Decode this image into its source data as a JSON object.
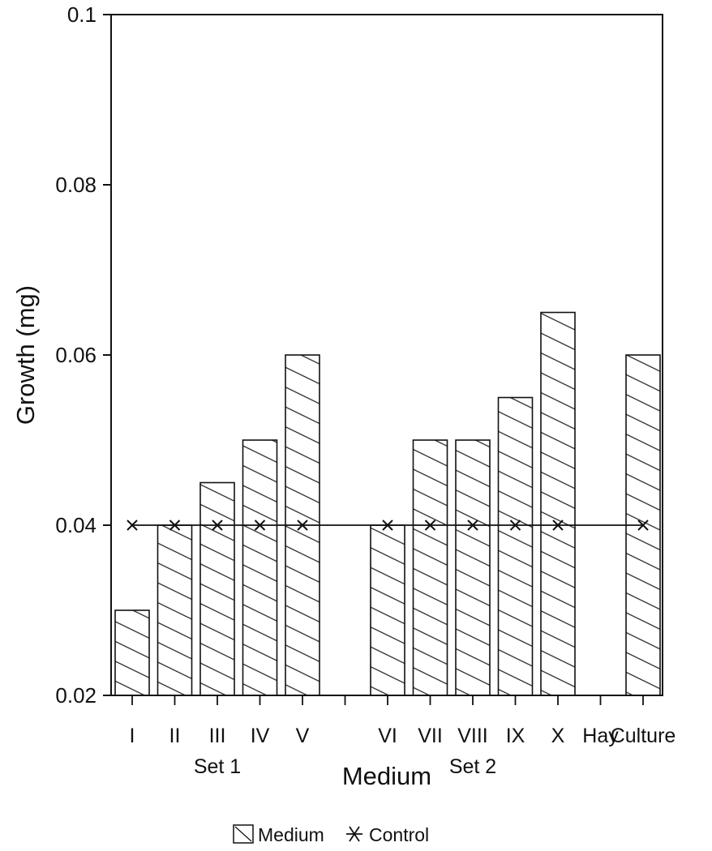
{
  "chart_data": {
    "type": "bar",
    "categories": [
      "I",
      "II",
      "III",
      "IV",
      "V",
      "VI",
      "VII",
      "VIII",
      "IX",
      "X",
      "Hay",
      "Culture"
    ],
    "series": [
      {
        "name": "Medium",
        "values": [
          0.03,
          0.04,
          0.045,
          0.05,
          0.06,
          0.04,
          0.05,
          0.05,
          0.055,
          0.065,
          null,
          0.06
        ]
      },
      {
        "name": "Control",
        "values": [
          0.04,
          0.04,
          0.04,
          0.04,
          0.04,
          0.04,
          0.04,
          0.04,
          0.04,
          0.04,
          null,
          0.04
        ]
      }
    ],
    "groups": [
      {
        "label": "Set 1",
        "categories": [
          "I",
          "II",
          "III",
          "IV",
          "V"
        ]
      },
      {
        "label": "Set 2",
        "categories": [
          "VI",
          "VII",
          "VIII",
          "IX",
          "X"
        ]
      }
    ],
    "ylim": [
      0.02,
      0.1
    ],
    "yticks": [
      "0.02",
      "0.04",
      "0.06",
      "0.08",
      "0.1"
    ],
    "xlabel": "Medium",
    "ylabel": "Growth (mg)",
    "legend_position": "bottom",
    "grid": false,
    "colors": {
      "bar_fill": "#ffffff",
      "hatch": "#222222",
      "line": "#111111"
    }
  }
}
